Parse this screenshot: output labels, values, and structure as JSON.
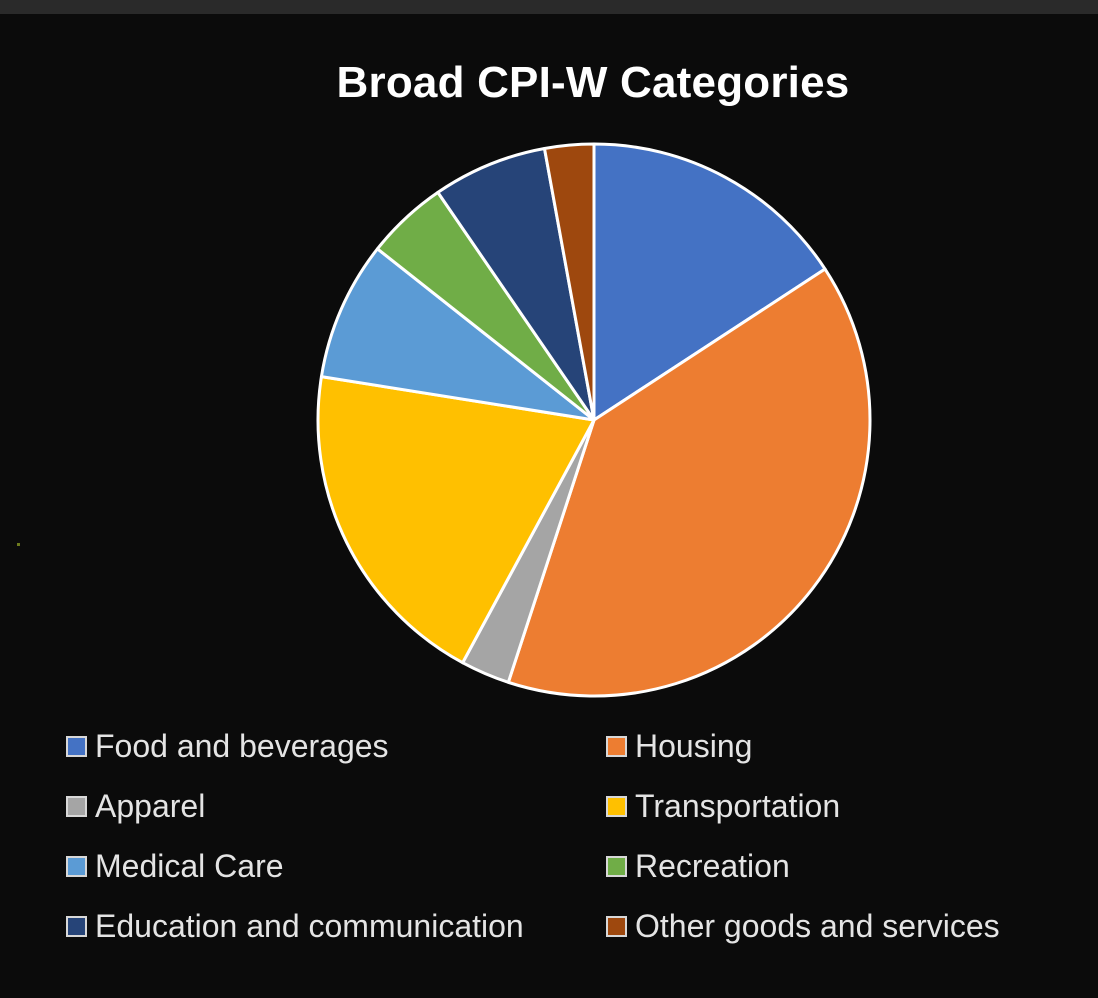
{
  "chart_data": {
    "type": "pie",
    "title": "Broad CPI-W Categories",
    "legend_position": "bottom",
    "slices": [
      {
        "label": "Food and beverages",
        "value": 16.5,
        "color": "#4472c4"
      },
      {
        "label": "Housing",
        "value": 41.0,
        "color": "#ed7d31"
      },
      {
        "label": "Apparel",
        "value": 3.0,
        "color": "#a5a5a5"
      },
      {
        "label": "Transportation",
        "value": 20.5,
        "color": "#ffc000"
      },
      {
        "label": "Medical Care",
        "value": 8.5,
        "color": "#5b9bd5"
      },
      {
        "label": "Recreation",
        "value": 5.0,
        "color": "#70ad47"
      },
      {
        "label": "Education and communication",
        "value": 7.0,
        "color": "#264478"
      },
      {
        "label": "Other goods and services",
        "value": 3.0,
        "color": "#9e480e"
      }
    ],
    "legend_order": [
      0,
      1,
      2,
      3,
      4,
      5,
      6,
      7
    ]
  }
}
